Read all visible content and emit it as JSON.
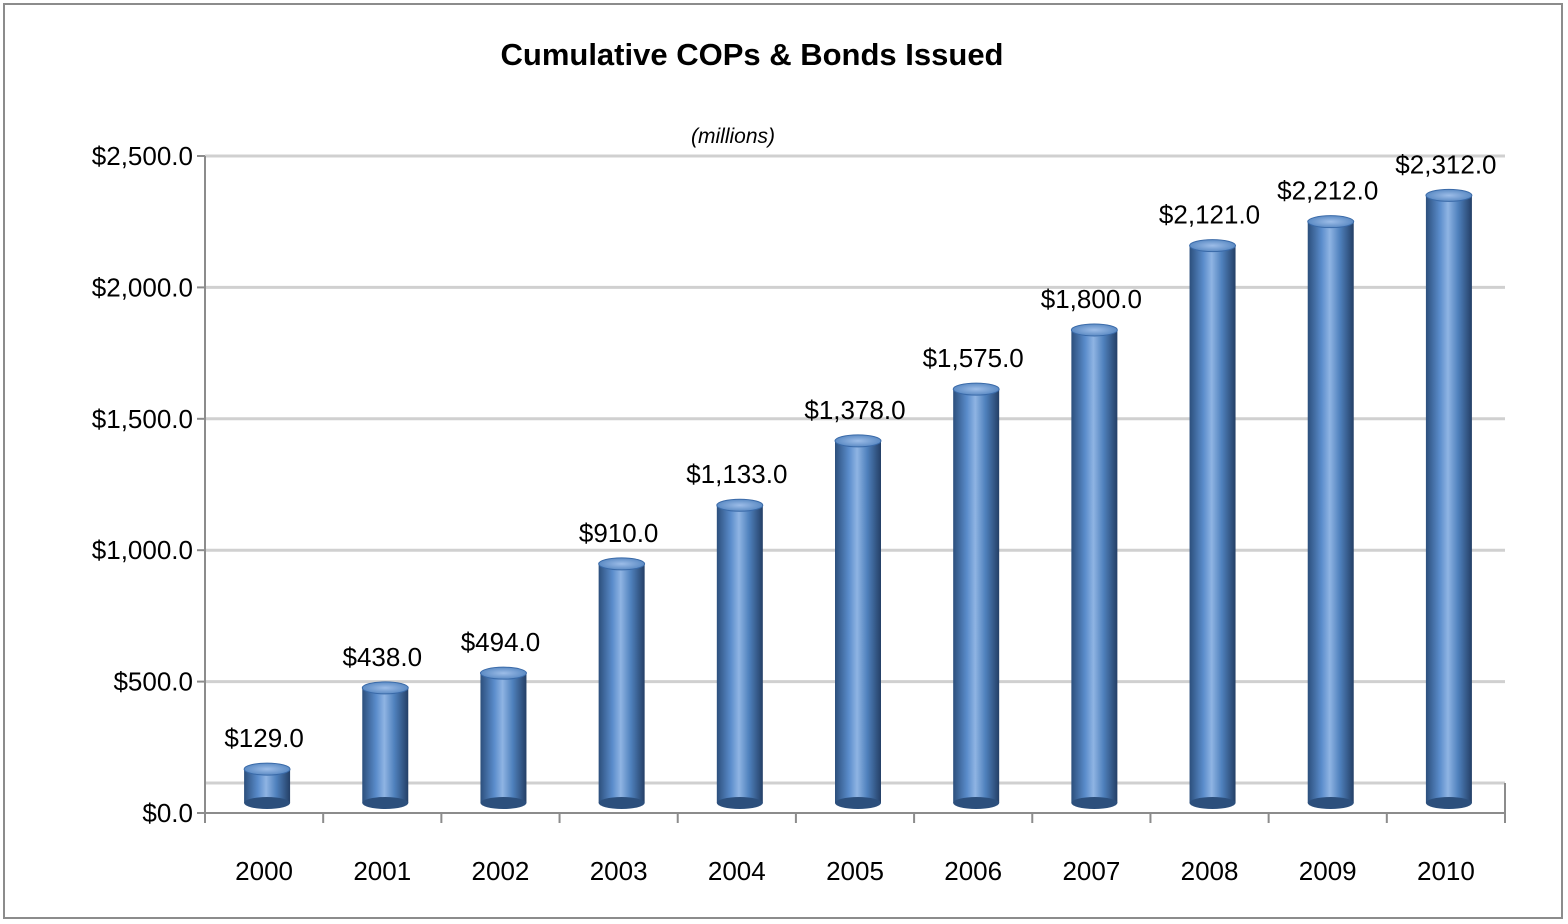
{
  "chart_data": {
    "type": "bar",
    "title": "Cumulative COPs & Bonds Issued",
    "subtitle": "(millions)",
    "categories": [
      "2000",
      "2001",
      "2002",
      "2003",
      "2004",
      "2005",
      "2006",
      "2007",
      "2008",
      "2009",
      "2010"
    ],
    "values": [
      129.0,
      438.0,
      494.0,
      910.0,
      1133.0,
      1378.0,
      1575.0,
      1800.0,
      2121.0,
      2212.0,
      2312.0
    ],
    "data_labels": [
      "$129.0",
      "$438.0",
      "$494.0",
      "$910.0",
      "$1,133.0",
      "$1,378.0",
      "$1,575.0",
      "$1,800.0",
      "$2,121.0",
      "$2,212.0",
      "$2,312.0"
    ],
    "y_ticks": [
      0,
      500,
      1000,
      1500,
      2000,
      2500
    ],
    "y_tick_labels": [
      "$0.0",
      "$500.0",
      "$1,000.0",
      "$1,500.0",
      "$2,000.0",
      "$2,500.0"
    ],
    "ylim": [
      0,
      2500
    ],
    "xlabel": "",
    "ylabel": "",
    "grid": true,
    "legend": false,
    "bar_style": "3d-cylinder",
    "colors": {
      "bar": "#4f81bd",
      "bar_dark": "#2c4f7c",
      "bar_light": "#8fb4e3",
      "grid": "#d0d0d0",
      "axis": "#8c8c8c",
      "frame": "#8c8c8c"
    }
  }
}
